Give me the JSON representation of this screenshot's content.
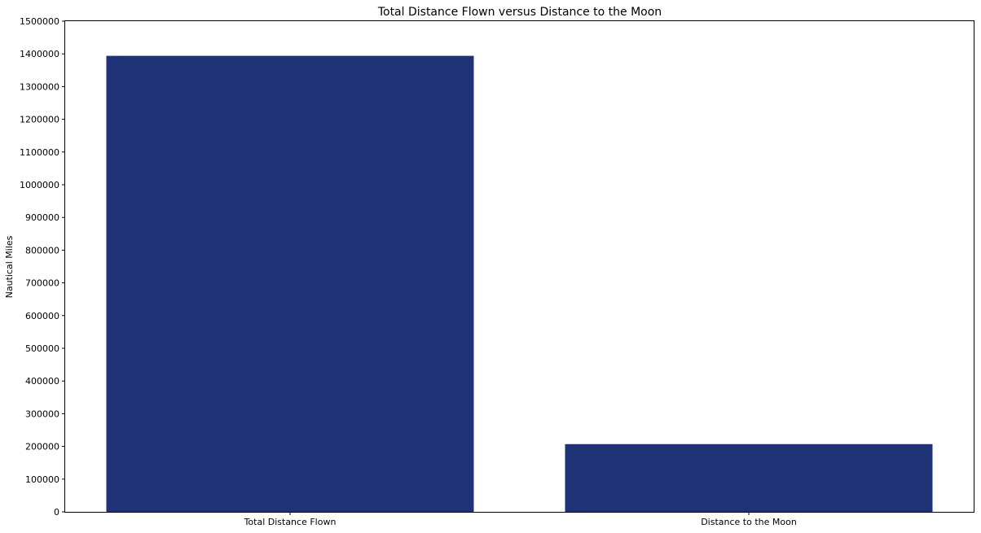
{
  "chart_data": {
    "type": "bar",
    "title": "Total Distance Flown versus Distance to the Moon",
    "xlabel": "",
    "ylabel": "Nautical Miles",
    "categories": [
      "Total Distance Flown",
      "Distance to the Moon"
    ],
    "values": [
      1394000,
      207000
    ],
    "ylim": [
      0,
      1500000
    ],
    "yticks": [
      0,
      100000,
      200000,
      300000,
      400000,
      500000,
      600000,
      700000,
      800000,
      900000,
      1000000,
      1100000,
      1200000,
      1300000,
      1400000,
      1500000
    ],
    "bar_color": "#1f3275",
    "grid": false,
    "legend": "none"
  }
}
